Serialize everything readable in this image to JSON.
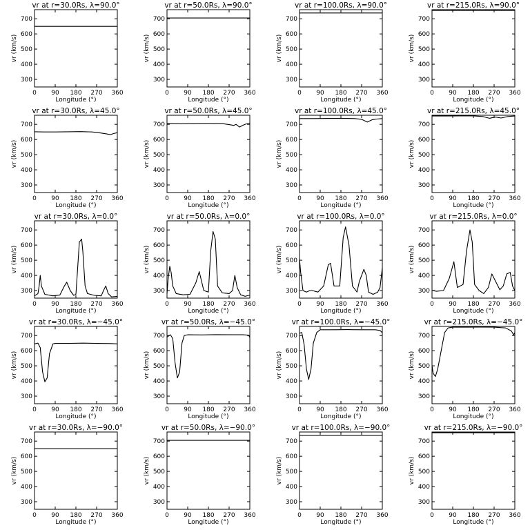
{
  "figure": {
    "xlabel": "Longitude (°)",
    "ylabel": "vr (km/s)"
  },
  "chart_data": [
    {
      "type": "line",
      "title": "vr at r=30.0Rs, λ=90.0°",
      "xlabel": "Longitude (°)",
      "ylabel": "vr (km/s)",
      "xlim": [
        0,
        360
      ],
      "ylim": [
        250,
        760
      ],
      "xticks": [
        0,
        90,
        180,
        270,
        360
      ],
      "yticks": [
        300,
        400,
        500,
        600,
        700
      ],
      "x": [
        0,
        360
      ],
      "y": [
        650,
        650
      ]
    },
    {
      "type": "line",
      "title": "vr at r=50.0Rs, λ=90.0°",
      "xlabel": "Longitude (°)",
      "ylabel": "vr (km/s)",
      "xlim": [
        0,
        360
      ],
      "ylim": [
        250,
        760
      ],
      "xticks": [
        0,
        90,
        180,
        270,
        360
      ],
      "yticks": [
        300,
        400,
        500,
        600,
        700
      ],
      "x": [
        0,
        360
      ],
      "y": [
        705,
        705
      ]
    },
    {
      "type": "line",
      "title": "vr at r=100.0Rs, λ=90.0°",
      "xlabel": "Longitude (°)",
      "ylabel": "vr (km/s)",
      "xlim": [
        0,
        360
      ],
      "ylim": [
        250,
        760
      ],
      "xticks": [
        0,
        90,
        180,
        270,
        360
      ],
      "yticks": [
        300,
        400,
        500,
        600,
        700
      ],
      "x": [
        0,
        360
      ],
      "y": [
        738,
        738
      ]
    },
    {
      "type": "line",
      "title": "vr at r=215.0Rs, λ=90.0°",
      "xlabel": "Longitude (°)",
      "ylabel": "vr (km/s)",
      "xlim": [
        0,
        360
      ],
      "ylim": [
        250,
        760
      ],
      "xticks": [
        0,
        90,
        180,
        270,
        360
      ],
      "yticks": [
        300,
        400,
        500,
        600,
        700
      ],
      "x": [
        0,
        360
      ],
      "y": [
        755,
        755
      ]
    },
    {
      "type": "line",
      "title": "vr at r=30.0Rs, λ=45.0°",
      "xlabel": "Longitude (°)",
      "ylabel": "vr (km/s)",
      "xlim": [
        0,
        360
      ],
      "ylim": [
        250,
        760
      ],
      "xticks": [
        0,
        90,
        180,
        270,
        360
      ],
      "yticks": [
        300,
        400,
        500,
        600,
        700
      ],
      "x": [
        0,
        40,
        90,
        150,
        200,
        250,
        280,
        310,
        330,
        345,
        360
      ],
      "y": [
        651,
        650,
        650,
        651,
        652,
        650,
        645,
        638,
        632,
        640,
        645
      ]
    },
    {
      "type": "line",
      "title": "vr at r=50.0Rs, λ=45.0°",
      "xlabel": "Longitude (°)",
      "ylabel": "vr (km/s)",
      "xlim": [
        0,
        360
      ],
      "ylim": [
        250,
        760
      ],
      "xticks": [
        0,
        90,
        180,
        270,
        360
      ],
      "yticks": [
        300,
        400,
        500,
        600,
        700
      ],
      "x": [
        0,
        60,
        120,
        180,
        240,
        270,
        290,
        300,
        315,
        330,
        345,
        360
      ],
      "y": [
        705,
        704,
        705,
        706,
        705,
        698,
        693,
        700,
        682,
        694,
        703,
        705
      ]
    },
    {
      "type": "line",
      "title": "vr at r=100.0Rs, λ=45.0°",
      "xlabel": "Longitude (°)",
      "ylabel": "vr (km/s)",
      "xlim": [
        0,
        360
      ],
      "ylim": [
        250,
        760
      ],
      "xticks": [
        0,
        90,
        180,
        270,
        360
      ],
      "yticks": [
        300,
        400,
        500,
        600,
        700
      ],
      "x": [
        0,
        60,
        120,
        180,
        240,
        270,
        295,
        315,
        335,
        360
      ],
      "y": [
        738,
        738,
        739,
        740,
        738,
        733,
        715,
        730,
        735,
        738
      ]
    },
    {
      "type": "line",
      "title": "vr at r=215.0Rs, λ=45.0°",
      "xlabel": "Longitude (°)",
      "ylabel": "vr (km/s)",
      "xlim": [
        0,
        360
      ],
      "ylim": [
        250,
        760
      ],
      "xticks": [
        0,
        90,
        180,
        270,
        360
      ],
      "yticks": [
        300,
        400,
        500,
        600,
        700
      ],
      "x": [
        0,
        60,
        120,
        180,
        220,
        250,
        275,
        300,
        330,
        360
      ],
      "y": [
        755,
        755,
        756,
        756,
        752,
        740,
        748,
        742,
        752,
        755
      ]
    },
    {
      "type": "line",
      "title": "vr at r=30.0Rs, λ=0.0°",
      "xlabel": "Longitude (°)",
      "ylabel": "vr (km/s)",
      "xlim": [
        0,
        360
      ],
      "ylim": [
        250,
        760
      ],
      "xticks": [
        0,
        90,
        180,
        270,
        360
      ],
      "yticks": [
        300,
        400,
        500,
        600,
        700
      ],
      "x": [
        0,
        15,
        20,
        25,
        30,
        45,
        80,
        110,
        130,
        140,
        155,
        170,
        180,
        188,
        195,
        205,
        210,
        220,
        230,
        260,
        290,
        300,
        310,
        320,
        335,
        360
      ],
      "y": [
        265,
        280,
        330,
        400,
        330,
        275,
        265,
        270,
        330,
        355,
        300,
        268,
        275,
        460,
        620,
        640,
        560,
        330,
        280,
        268,
        265,
        300,
        330,
        280,
        258,
        262
      ]
    },
    {
      "type": "line",
      "title": "vr at r=50.0Rs, λ=0.0°",
      "xlabel": "Longitude (°)",
      "ylabel": "vr (km/s)",
      "xlim": [
        0,
        360
      ],
      "ylim": [
        250,
        760
      ],
      "xticks": [
        0,
        90,
        180,
        270,
        360
      ],
      "yticks": [
        300,
        400,
        500,
        600,
        700
      ],
      "x": [
        0,
        5,
        12,
        18,
        25,
        40,
        70,
        100,
        125,
        140,
        160,
        180,
        190,
        200,
        210,
        220,
        240,
        270,
        285,
        295,
        305,
        320,
        340,
        360
      ],
      "y": [
        280,
        380,
        460,
        420,
        330,
        280,
        272,
        275,
        350,
        425,
        300,
        290,
        560,
        690,
        640,
        330,
        285,
        280,
        300,
        400,
        320,
        272,
        262,
        270
      ]
    },
    {
      "type": "line",
      "title": "vr at r=100.0Rs, λ=0.0°",
      "xlabel": "Longitude (°)",
      "ylabel": "vr (km/s)",
      "xlim": [
        0,
        360
      ],
      "ylim": [
        250,
        760
      ],
      "xticks": [
        0,
        90,
        180,
        270,
        360
      ],
      "yticks": [
        300,
        400,
        500,
        600,
        700
      ],
      "x": [
        0,
        5,
        15,
        30,
        45,
        55,
        80,
        105,
        125,
        135,
        150,
        175,
        190,
        200,
        215,
        230,
        250,
        260,
        280,
        290,
        300,
        320,
        340,
        350,
        360
      ],
      "y": [
        510,
        420,
        300,
        290,
        300,
        300,
        290,
        330,
        470,
        480,
        330,
        330,
        650,
        720,
        600,
        330,
        290,
        360,
        440,
        400,
        290,
        275,
        290,
        320,
        450
      ]
    },
    {
      "type": "line",
      "title": "vr at r=215.0Rs, λ=0.0°",
      "xlabel": "Longitude (°)",
      "ylabel": "vr (km/s)",
      "xlim": [
        0,
        360
      ],
      "ylim": [
        250,
        760
      ],
      "xticks": [
        0,
        90,
        180,
        270,
        360
      ],
      "yticks": [
        300,
        400,
        500,
        600,
        700
      ],
      "x": [
        0,
        20,
        50,
        75,
        95,
        110,
        135,
        150,
        165,
        175,
        185,
        205,
        225,
        245,
        260,
        280,
        295,
        310,
        325,
        340,
        350,
        360
      ],
      "y": [
        300,
        295,
        300,
        380,
        490,
        320,
        340,
        560,
        700,
        620,
        340,
        300,
        280,
        320,
        410,
        350,
        305,
        330,
        410,
        420,
        330,
        300
      ]
    },
    {
      "type": "line",
      "title": "vr at r=30.0Rs, λ=−45.0°",
      "xlabel": "Longitude (°)",
      "ylabel": "vr (km/s)",
      "xlim": [
        0,
        360
      ],
      "ylim": [
        250,
        760
      ],
      "xticks": [
        0,
        90,
        180,
        270,
        360
      ],
      "yticks": [
        300,
        400,
        500,
        600,
        700
      ],
      "x": [
        0,
        15,
        25,
        35,
        45,
        55,
        65,
        80,
        90,
        150,
        210,
        270,
        330,
        360
      ],
      "y": [
        645,
        650,
        620,
        460,
        395,
        420,
        580,
        645,
        648,
        648,
        650,
        648,
        647,
        645
      ]
    },
    {
      "type": "line",
      "title": "vr at r=50.0Rs, λ=−45.0°",
      "xlabel": "Longitude (°)",
      "ylabel": "vr (km/s)",
      "xlim": [
        0,
        360
      ],
      "ylim": [
        250,
        760
      ],
      "xticks": [
        0,
        90,
        180,
        270,
        360
      ],
      "yticks": [
        300,
        400,
        500,
        600,
        700
      ],
      "x": [
        0,
        15,
        25,
        35,
        45,
        55,
        65,
        75,
        90,
        150,
        210,
        270,
        330,
        355,
        360
      ],
      "y": [
        690,
        705,
        680,
        520,
        420,
        460,
        650,
        700,
        705,
        704,
        706,
        705,
        705,
        702,
        688
      ]
    },
    {
      "type": "line",
      "title": "vr at r=100.0Rs, λ=−45.0°",
      "xlabel": "Longitude (°)",
      "ylabel": "vr (km/s)",
      "xlim": [
        0,
        360
      ],
      "ylim": [
        250,
        760
      ],
      "xticks": [
        0,
        90,
        180,
        270,
        360
      ],
      "yticks": [
        300,
        400,
        500,
        600,
        700
      ],
      "x": [
        0,
        10,
        20,
        30,
        40,
        50,
        60,
        75,
        90,
        150,
        210,
        270,
        330,
        350,
        360
      ],
      "y": [
        715,
        720,
        640,
        480,
        410,
        480,
        650,
        720,
        738,
        738,
        739,
        738,
        738,
        733,
        718
      ]
    },
    {
      "type": "line",
      "title": "vr at r=215.0Rs, λ=−45.0°",
      "xlabel": "Longitude (°)",
      "ylabel": "vr (km/s)",
      "xlim": [
        0,
        360
      ],
      "ylim": [
        250,
        760
      ],
      "xticks": [
        0,
        90,
        180,
        270,
        360
      ],
      "yticks": [
        300,
        400,
        500,
        600,
        700
      ],
      "x": [
        0,
        5,
        15,
        25,
        40,
        55,
        70,
        90,
        150,
        210,
        270,
        320,
        345,
        355,
        360
      ],
      "y": [
        500,
        450,
        430,
        480,
        600,
        720,
        750,
        755,
        755,
        756,
        755,
        750,
        730,
        705,
        720
      ]
    },
    {
      "type": "line",
      "title": "vr at r=30.0Rs, λ=−90.0°",
      "xlabel": "Longitude (°)",
      "ylabel": "vr (km/s)",
      "xlim": [
        0,
        360
      ],
      "ylim": [
        250,
        760
      ],
      "xticks": [
        0,
        90,
        180,
        270,
        360
      ],
      "yticks": [
        300,
        400,
        500,
        600,
        700
      ],
      "x": [
        0,
        360
      ],
      "y": [
        650,
        650
      ]
    },
    {
      "type": "line",
      "title": "vr at r=50.0Rs, λ=−90.0°",
      "xlabel": "Longitude (°)",
      "ylabel": "vr (km/s)",
      "xlim": [
        0,
        360
      ],
      "ylim": [
        250,
        760
      ],
      "xticks": [
        0,
        90,
        180,
        270,
        360
      ],
      "yticks": [
        300,
        400,
        500,
        600,
        700
      ],
      "x": [
        0,
        360
      ],
      "y": [
        705,
        705
      ]
    },
    {
      "type": "line",
      "title": "vr at r=100.0Rs, λ=−90.0°",
      "xlabel": "Longitude (°)",
      "ylabel": "vr (km/s)",
      "xlim": [
        0,
        360
      ],
      "ylim": [
        250,
        760
      ],
      "xticks": [
        0,
        90,
        180,
        270,
        360
      ],
      "yticks": [
        300,
        400,
        500,
        600,
        700
      ],
      "x": [
        0,
        360
      ],
      "y": [
        738,
        738
      ]
    },
    {
      "type": "line",
      "title": "vr at r=215.0Rs, λ=−90.0°",
      "xlabel": "Longitude (°)",
      "ylabel": "vr (km/s)",
      "xlim": [
        0,
        360
      ],
      "ylim": [
        250,
        760
      ],
      "xticks": [
        0,
        90,
        180,
        270,
        360
      ],
      "yticks": [
        300,
        400,
        500,
        600,
        700
      ],
      "x": [
        0,
        360
      ],
      "y": [
        755,
        755
      ]
    }
  ]
}
